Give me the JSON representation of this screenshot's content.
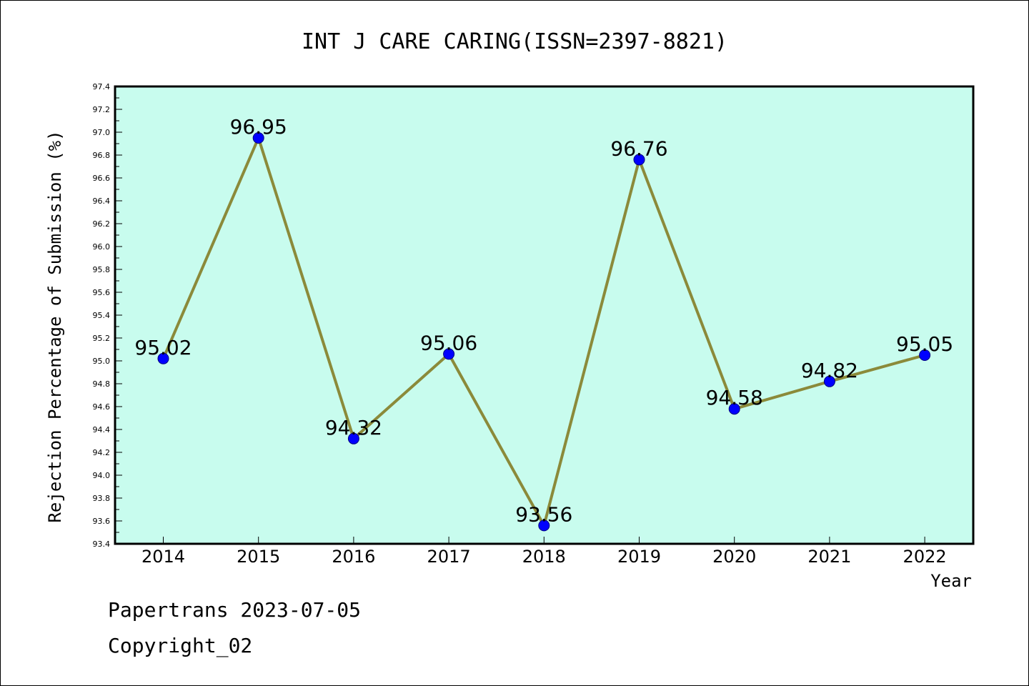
{
  "chart_data": {
    "type": "line",
    "title": "INT J CARE CARING(ISSN=2397-8821)",
    "xlabel": "Year",
    "ylabel": "Rejection Percentage of Submission (%)",
    "categories": [
      "2014",
      "2015",
      "2016",
      "2017",
      "2018",
      "2019",
      "2020",
      "2021",
      "2022"
    ],
    "values": [
      95.02,
      96.95,
      94.32,
      95.06,
      93.56,
      96.76,
      94.58,
      94.82,
      95.05
    ],
    "data_labels": [
      "95.02",
      "96.95",
      "94.32",
      "95.06",
      "93.56",
      "96.76",
      "94.58",
      "94.82",
      "95.05"
    ],
    "ylim": [
      93.4,
      97.4
    ],
    "yticks": [
      "93.4",
      "93.6",
      "93.8",
      "94.0",
      "94.2",
      "94.4",
      "94.6",
      "94.8",
      "95.0",
      "95.2",
      "95.4",
      "95.6",
      "95.8",
      "96.0",
      "96.2",
      "96.4",
      "96.6",
      "96.8",
      "97.0",
      "97.2",
      "97.4"
    ],
    "grid": false,
    "colors": {
      "plot_background": "#c8fcee",
      "line": "#8b8a3a",
      "marker": "#0000ff",
      "marker_edge": "#000080"
    }
  },
  "footer": {
    "line1": "Papertrans 2023-07-05",
    "line2": "Copyright_02"
  }
}
